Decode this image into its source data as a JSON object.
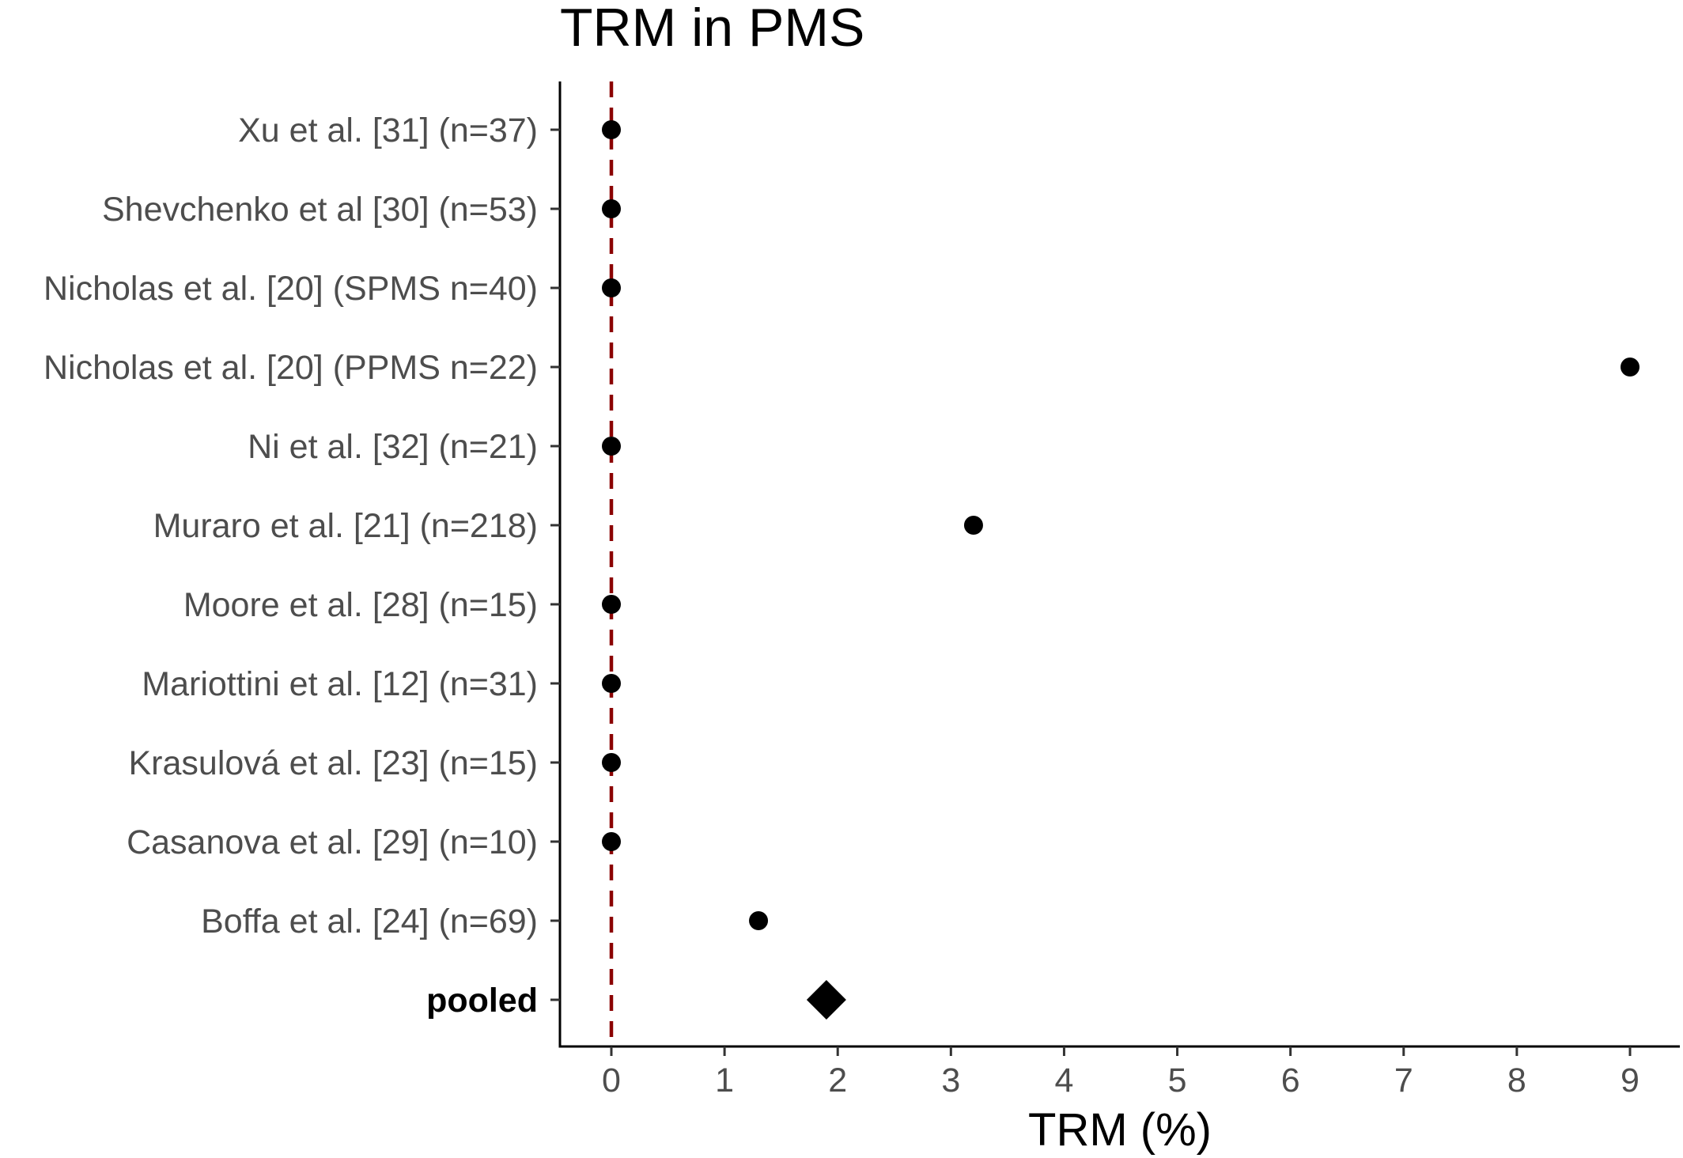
{
  "chart_data": {
    "type": "scatter",
    "title": "TRM in PMS",
    "xlabel": "TRM (%)",
    "ylabel": "",
    "xlim": [
      -0.45,
      9.45
    ],
    "x_ticks": [
      0,
      1,
      2,
      3,
      4,
      5,
      6,
      7,
      8,
      9
    ],
    "reference_line": {
      "x": 0,
      "style": "dashed",
      "color": "#8b0000"
    },
    "grid": false,
    "studies": [
      {
        "label": "Xu et al. [31]  (n=37)",
        "value": 0
      },
      {
        "label": "Shevchenko et al [30]  (n=53)",
        "value": 0
      },
      {
        "label": "Nicholas et al. [20]  (SPMS n=40)",
        "value": 0
      },
      {
        "label": "Nicholas et al. [20]  (PPMS n=22)",
        "value": 9
      },
      {
        "label": "Ni et al. [32]  (n=21)",
        "value": 0
      },
      {
        "label": "Muraro et al. [21]  (n=218)",
        "value": 3.2
      },
      {
        "label": "Moore et al. [28]  (n=15)",
        "value": 0
      },
      {
        "label": "Mariottini et al. [12]  (n=31)",
        "value": 0
      },
      {
        "label": "Krasulová et al. [23]  (n=15)",
        "value": 0
      },
      {
        "label": "Casanova et al. [29]  (n=10)",
        "value": 0
      },
      {
        "label": "Boffa et al. [24]  (n=69)",
        "value": 1.3
      }
    ],
    "pooled": {
      "label": "pooled",
      "value": 1.9
    },
    "colors": {
      "point": "#000000",
      "reference_line": "#8b0000",
      "axis": "#000000"
    }
  }
}
